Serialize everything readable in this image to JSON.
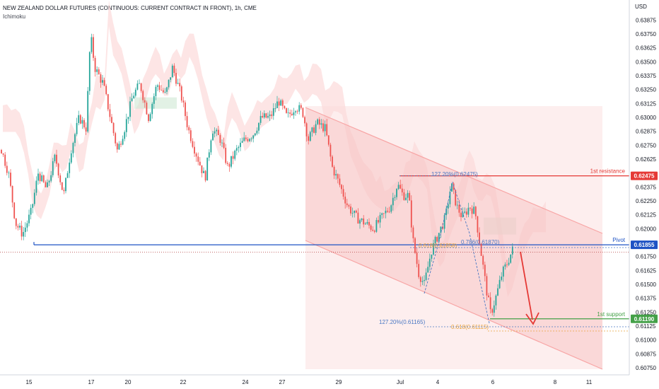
{
  "header": {
    "title": "NEW ZEALAND DOLLAR FUTURES (CONTINUOUS: CURRENT CONTRACT IN FRONT), 1h, CME",
    "indicator": "Ichimoku"
  },
  "colors": {
    "up": "#26a69a",
    "down": "#ef5350",
    "resistance": "#e53935",
    "pivot": "#1e53c4",
    "support": "#43a047",
    "channel": "#f8a5a5",
    "fib_blue": "#4a78c4",
    "fib_orange": "#e8a33d"
  },
  "chart_data": {
    "type": "candlestick",
    "title": "NEW ZEALAND DOLLAR FUTURES (CONTINUOUS: CURRENT CONTRACT IN FRONT), 1h, CME",
    "currency": "USD",
    "y_range": [
      0.6075,
      0.6396
    ],
    "y_ticks": [
      "0.60750",
      "0.60875",
      "0.61000",
      "0.61125",
      "0.61250",
      "0.61375",
      "0.61500",
      "0.61625",
      "0.61750",
      "0.62000",
      "0.62125",
      "0.62250",
      "0.62375",
      "0.62625",
      "0.62750",
      "0.62875",
      "0.63000",
      "0.63125",
      "0.63250",
      "0.63375",
      "0.63500",
      "0.63625",
      "0.63750",
      "0.63875"
    ],
    "x_ticks": [
      "15",
      "17",
      "20",
      "22",
      "24",
      "27",
      "29",
      "Jul",
      "4",
      "6",
      "8",
      "11"
    ],
    "price_path": [
      [
        0,
        0.6275
      ],
      [
        12,
        0.625
      ],
      [
        22,
        0.6205
      ],
      [
        32,
        0.6195
      ],
      [
        44,
        0.6215
      ],
      [
        54,
        0.625
      ],
      [
        66,
        0.6235
      ],
      [
        78,
        0.6265
      ],
      [
        90,
        0.623
      ],
      [
        100,
        0.627
      ],
      [
        112,
        0.63
      ],
      [
        122,
        0.629
      ],
      [
        128,
        0.6375
      ],
      [
        134,
        0.6345
      ],
      [
        146,
        0.633
      ],
      [
        156,
        0.63
      ],
      [
        166,
        0.627
      ],
      [
        176,
        0.629
      ],
      [
        188,
        0.632
      ],
      [
        198,
        0.633
      ],
      [
        210,
        0.63
      ],
      [
        222,
        0.633
      ],
      [
        234,
        0.632
      ],
      [
        244,
        0.6345
      ],
      [
        256,
        0.632
      ],
      [
        266,
        0.629
      ],
      [
        276,
        0.627
      ],
      [
        290,
        0.6245
      ],
      [
        300,
        0.629
      ],
      [
        312,
        0.628
      ],
      [
        322,
        0.6255
      ],
      [
        334,
        0.627
      ],
      [
        346,
        0.628
      ],
      [
        358,
        0.6285
      ],
      [
        370,
        0.63
      ],
      [
        382,
        0.63
      ],
      [
        394,
        0.6315
      ],
      [
        406,
        0.63
      ],
      [
        418,
        0.631
      ],
      [
        428,
        0.6305
      ],
      [
        436,
        0.628
      ],
      [
        448,
        0.6295
      ],
      [
        460,
        0.629
      ],
      [
        470,
        0.6255
      ],
      [
        480,
        0.624
      ],
      [
        492,
        0.622
      ],
      [
        504,
        0.621
      ],
      [
        516,
        0.6205
      ],
      [
        528,
        0.62
      ],
      [
        540,
        0.621
      ],
      [
        552,
        0.622
      ],
      [
        562,
        0.624
      ],
      [
        570,
        0.623
      ],
      [
        578,
        0.623
      ],
      [
        584,
        0.619
      ],
      [
        592,
        0.616
      ],
      [
        600,
        0.615
      ],
      [
        610,
        0.618
      ],
      [
        620,
        0.6195
      ],
      [
        630,
        0.621
      ],
      [
        638,
        0.624
      ],
      [
        646,
        0.622
      ],
      [
        654,
        0.621
      ],
      [
        664,
        0.622
      ],
      [
        672,
        0.6215
      ],
      [
        680,
        0.618
      ],
      [
        688,
        0.6145
      ],
      [
        694,
        0.6123
      ],
      [
        702,
        0.614
      ],
      [
        710,
        0.616
      ],
      [
        718,
        0.617
      ],
      [
        724,
        0.618
      ],
      [
        728,
        0.6185
      ]
    ],
    "levels": [
      {
        "name": "1st resistance",
        "value": 0.62475,
        "label": "0.62475"
      },
      {
        "name": "Pivot",
        "value": 0.61855,
        "label": "0.61855"
      },
      {
        "name": "1st support",
        "value": 0.6119,
        "label": "0.61190"
      }
    ],
    "fib_annotations": [
      "127.20%(0.62475)",
      "0.786(0.61870)",
      "127.20%(0.61165)",
      "0.618(0.61115)",
      "0.618(0.61858)"
    ],
    "forecast_arrow": {
      "from": 0.61855,
      "to": 0.6119
    }
  }
}
